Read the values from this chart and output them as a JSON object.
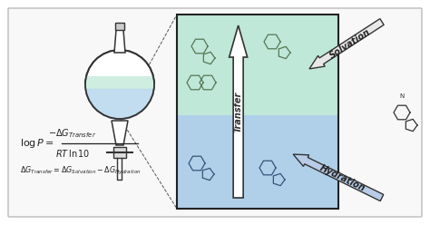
{
  "background_color": "#ffffff",
  "outer_box_edgecolor": "#bbbbbb",
  "outer_box_facecolor": "#f8f8f8",
  "panel_top_bg": "#c0e8d8",
  "panel_bottom_bg": "#b0d0ea",
  "panel_border": "#222222",
  "transfer_arrow_face": "#ffffff",
  "transfer_arrow_edge": "#333333",
  "solvation_arrow_face": "#e8e8e8",
  "solvation_arrow_edge": "#333333",
  "hydration_arrow_face": "#b8cce8",
  "hydration_arrow_edge": "#333333",
  "text_color": "#222222",
  "solvation_label": "Solvation",
  "transfer_label": "Transfer",
  "hydration_label": "Hydration",
  "flask_fill_blue": "#b8d8ee",
  "flask_fill_green": "#c8eadc",
  "flask_edge": "#333333"
}
